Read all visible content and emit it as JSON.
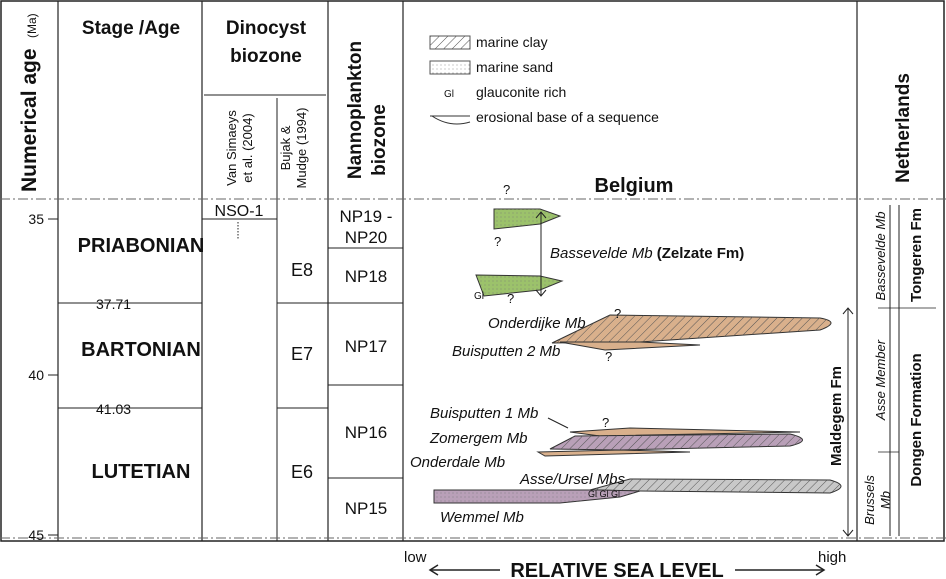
{
  "headers": {
    "age": "Numerical age",
    "age_unit": "(Ma)",
    "stage": "Stage /Age",
    "dinocyst_line1": "Dinocyst",
    "dinocyst_line2": "biozone",
    "vansimaeys_line1": "Van Simaeys",
    "vansimaeys_line2": "et al. (2004)",
    "bujak_line1": "Bujak &",
    "bujak_line2": "Mudge (1994)",
    "nanno_line1": "Nannoplankton",
    "nanno_line2": "biozone",
    "belgium": "Belgium",
    "netherlands": "Netherlands"
  },
  "age_ticks": [
    "35",
    "40",
    "45"
  ],
  "age_markers": [
    "37.71",
    "41.03"
  ],
  "stages": [
    "PRIABONIAN",
    "BARTONIAN",
    "LUTETIAN"
  ],
  "vansimaeys_zone": "NSO-1",
  "bujak_zones": [
    "E8",
    "E7",
    "E6"
  ],
  "nanno_zones": [
    "NP19 -",
    "NP20",
    "NP18",
    "NP17",
    "NP16",
    "NP15"
  ],
  "legend": {
    "clay": "marine clay",
    "sand": "marine sand",
    "gl_symbol": "Gl",
    "glauconite": "glauconite rich",
    "erosional": "erosional base of a sequence"
  },
  "units": {
    "bassevelde": "Bassevelde Mb",
    "zelzate": "(Zelzate Fm)",
    "onderdijke": "Onderdijke Mb",
    "buisputten2": "Buisputten 2 Mb",
    "buisputten1": "Buisputten 1 Mb",
    "zomergem": "Zomergem Mb",
    "onderdale": "Onderdale Mb",
    "asseursel": "Asse/Ursel Mbs",
    "wemmel": "Wemmel Mb",
    "maldegem": "Maldegem Fm",
    "glglgl": "Gl Gl Gl",
    "q": "?"
  },
  "netherlands_units": {
    "bassevelde": "Bassevelde Mb",
    "tongeren": "Tongeren Fm",
    "asse": "Asse Member",
    "dongen": "Dongen Formation",
    "brussels1": "Brussels",
    "brussels2": "Mb"
  },
  "axis": {
    "low": "low",
    "high": "high",
    "title": "RELATIVE SEA LEVEL"
  },
  "colors": {
    "green": "#9cc26b",
    "tan": "#d9b08c",
    "mauve": "#b9a0b8",
    "grey": "#c8c8c8"
  }
}
